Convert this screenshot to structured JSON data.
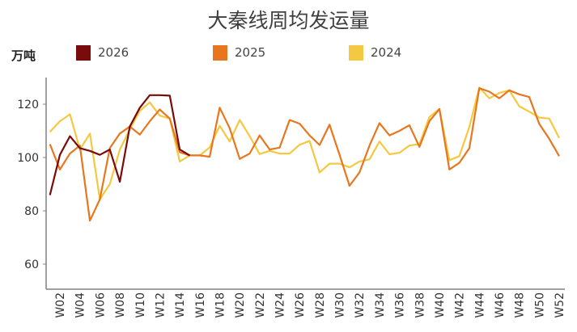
{
  "header": {
    "title": "大秦线周均发运量",
    "unit": "万吨"
  },
  "legend": [
    {
      "label": "2026",
      "color": "#7a0b0b"
    },
    {
      "label": "2025",
      "color": "#e8761e"
    },
    {
      "label": "2024",
      "color": "#f5c842"
    }
  ],
  "chart_data": {
    "type": "line",
    "title": "大秦线周均发运量",
    "xlabel": "",
    "ylabel": "万吨",
    "ylim": [
      50,
      130
    ],
    "yticks": [
      60,
      80,
      100,
      120
    ],
    "grid": false,
    "legend_position": "top",
    "x": [
      "W01",
      "W02",
      "W03",
      "W04",
      "W05",
      "W06",
      "W07",
      "W08",
      "W09",
      "W10",
      "W11",
      "W12",
      "W13",
      "W14",
      "W15",
      "W16",
      "W17",
      "W18",
      "W19",
      "W20",
      "W21",
      "W22",
      "W23",
      "W24",
      "W25",
      "W26",
      "W27",
      "W28",
      "W29",
      "W30",
      "W31",
      "W32",
      "W33",
      "W34",
      "W35",
      "W36",
      "W37",
      "W38",
      "W39",
      "W40",
      "W41",
      "W42",
      "W43",
      "W44",
      "W45",
      "W46",
      "W47",
      "W48",
      "W49",
      "W50",
      "W51",
      "W52"
    ],
    "x_tick_labels": [
      "W02",
      "W04",
      "W06",
      "W08",
      "W10",
      "W12",
      "W14",
      "W16",
      "W18",
      "W20",
      "W22",
      "W24",
      "W26",
      "W28",
      "W30",
      "W32",
      "W34",
      "W36",
      "W38",
      "W40",
      "W42",
      "W44",
      "W46",
      "W48",
      "W50",
      "W52"
    ],
    "series": [
      {
        "name": "2026",
        "color": "#7a0b0b",
        "values": [
          85.9,
          101,
          108,
          103.5,
          102.5,
          101,
          103,
          90.9,
          111.6,
          118.7,
          123.4,
          123.4,
          123.2,
          103,
          100.8
        ]
      },
      {
        "name": "2025",
        "color": "#e8761e",
        "values": [
          105,
          95.5,
          101.5,
          104.5,
          76.3,
          84.3,
          103.5,
          109,
          111.6,
          108.6,
          113.6,
          118,
          114.6,
          102,
          100.8,
          100.8,
          100.3,
          118.7,
          111,
          99.5,
          101.5,
          108.3,
          103,
          103.7,
          114.1,
          112.7,
          108.3,
          104.7,
          112.3,
          101,
          89.4,
          94.4,
          104.5,
          112.9,
          108.3,
          110,
          112.1,
          104,
          113.6,
          118.2,
          95.5,
          98,
          103.5,
          126,
          124.7,
          122.2,
          125.2,
          123.7,
          122.7,
          112.6,
          107,
          100.5
        ]
      },
      {
        "name": "2024",
        "color": "#f5c842",
        "values": [
          109.6,
          113.6,
          116.2,
          103,
          109,
          84.3,
          90,
          103,
          110.6,
          117.5,
          120.7,
          115.7,
          114.6,
          98.5,
          100.8,
          100.8,
          103.8,
          111.9,
          106,
          114.1,
          108,
          101.3,
          102.5,
          101.5,
          101.5,
          104.8,
          106.2,
          94.4,
          97.7,
          97.7,
          96.3,
          98.5,
          99.3,
          106,
          101.2,
          101.8,
          104.5,
          105,
          115.2,
          118.2,
          99,
          100.5,
          111.5,
          126.3,
          122.2,
          124.2,
          125.2,
          119.2,
          117.2,
          115,
          114.6,
          107.3
        ]
      }
    ]
  }
}
